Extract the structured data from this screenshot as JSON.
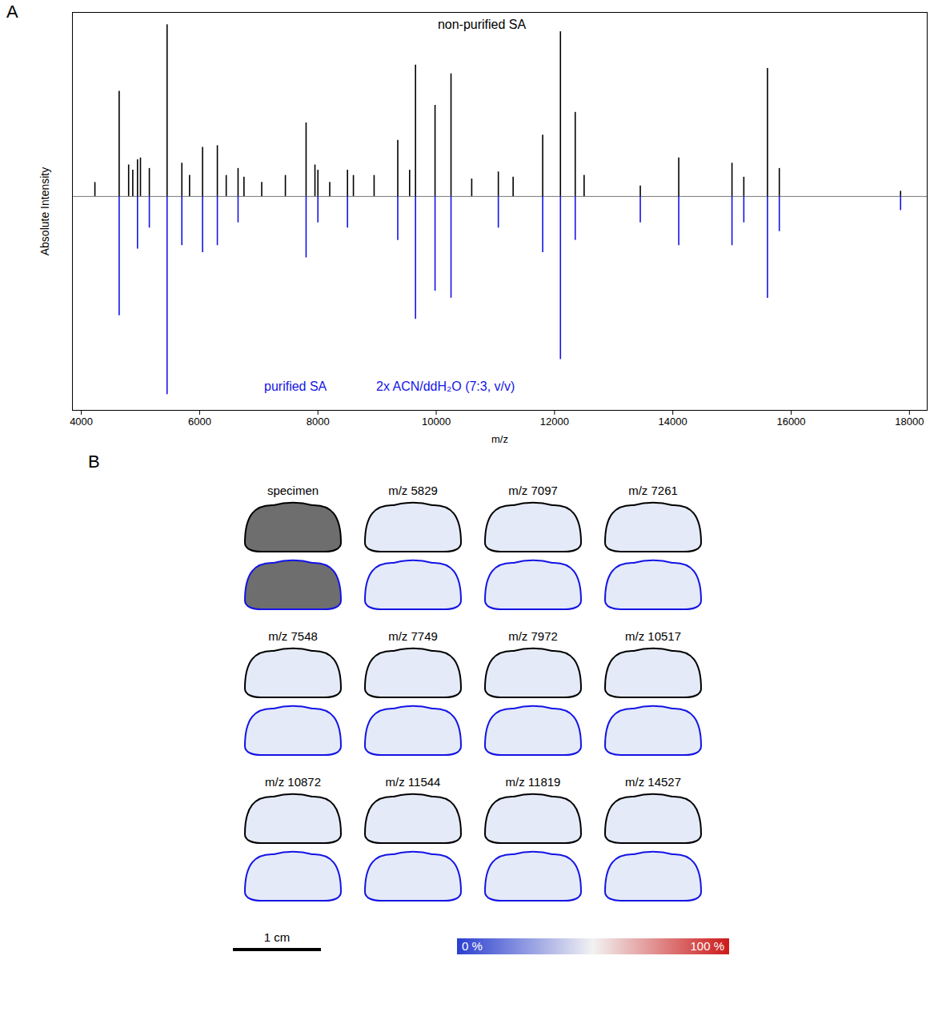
{
  "chart_data": {
    "type": "spectrum",
    "panel_label": "A",
    "x_label": "m/z",
    "y_label": "Absolute Intensity",
    "xlim": [
      3850,
      18300
    ],
    "xticks": [
      4000,
      6000,
      8000,
      10000,
      12000,
      14000,
      16000,
      18000
    ],
    "ylim": [
      -1.22,
      1.05
    ],
    "tick_labels": "x",
    "series": [
      {
        "name": "non-purified SA",
        "color": "#000000",
        "x": [
          4230,
          4640,
          4800,
          4870,
          4950,
          5000,
          5150,
          5450,
          5700,
          5830,
          6050,
          6300,
          6450,
          6650,
          6750,
          7050,
          7450,
          7800,
          7950,
          8000,
          8200,
          8500,
          8600,
          8950,
          9350,
          9550,
          9650,
          9980,
          10250,
          10600,
          11050,
          11300,
          11800,
          12100,
          12350,
          12500,
          13450,
          14100,
          15000,
          15200,
          15600,
          15800,
          17850
        ],
        "values": [
          0.08,
          0.6,
          0.18,
          0.15,
          0.21,
          0.22,
          0.16,
          0.98,
          0.19,
          0.12,
          0.28,
          0.29,
          0.12,
          0.16,
          0.11,
          0.08,
          0.12,
          0.42,
          0.18,
          0.15,
          0.08,
          0.15,
          0.12,
          0.12,
          0.32,
          0.15,
          0.75,
          0.52,
          0.7,
          0.1,
          0.14,
          0.11,
          0.35,
          0.94,
          0.48,
          0.12,
          0.06,
          0.22,
          0.19,
          0.11,
          0.73,
          0.16,
          0.03
        ]
      },
      {
        "name": "purified SA",
        "color": "#1414e6",
        "x": [
          4640,
          4950,
          5150,
          5450,
          5700,
          6050,
          6300,
          6650,
          7800,
          8000,
          8500,
          9350,
          9650,
          9980,
          10250,
          11050,
          11800,
          12100,
          12350,
          13450,
          14100,
          15000,
          15200,
          15600,
          15800,
          17850
        ],
        "values": [
          -0.68,
          -0.3,
          -0.18,
          -1.13,
          -0.28,
          -0.32,
          -0.28,
          -0.15,
          -0.35,
          -0.15,
          -0.18,
          -0.25,
          -0.7,
          -0.54,
          -0.58,
          -0.18,
          -0.32,
          -0.93,
          -0.25,
          -0.15,
          -0.28,
          -0.28,
          -0.15,
          -0.58,
          -0.2,
          -0.08
        ]
      }
    ],
    "annotations": [
      "2x ACN/ddH₂O (7:3, v/v)"
    ]
  },
  "image_panel": {
    "panel_label": "B",
    "rows": [
      [
        "specimen",
        "m/z 5829",
        "m/z 7097",
        "m/z 7261"
      ],
      [
        "m/z 7548",
        "m/z 7749",
        "m/z 7972",
        "m/z 10517"
      ],
      [
        "m/z 10872",
        "m/z 11544",
        "m/z 11819",
        "m/z 14527"
      ]
    ],
    "outline_colors": [
      "#000000",
      "#1414e6"
    ],
    "scale_bar": "1 cm",
    "color_bar": {
      "range": [
        0,
        100
      ],
      "ticks": [
        {
          "value": 0,
          "label": "0 %"
        },
        {
          "value": 100,
          "label": "100 %"
        }
      ],
      "colors": [
        "#2b3fd0",
        "#f2f2f2",
        "#cc1a1a"
      ]
    }
  }
}
